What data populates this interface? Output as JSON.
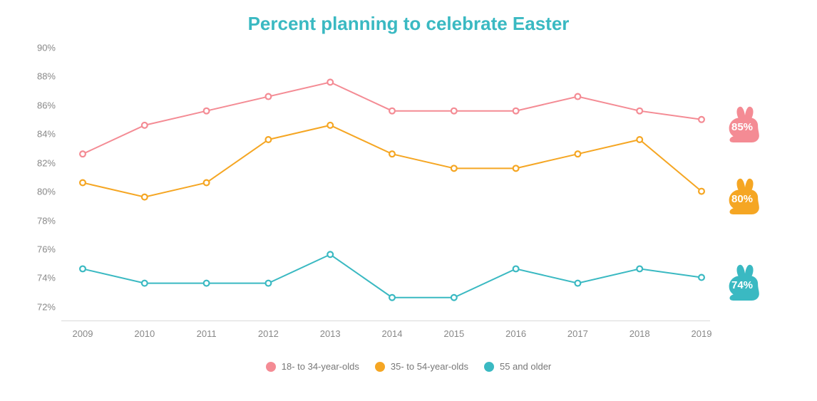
{
  "chart": {
    "type": "line",
    "title": "Percent planning to celebrate Easter",
    "title_color": "#3ab9c2",
    "title_fontsize": 26,
    "background_color": "#ffffff",
    "axis_label_color": "#888888",
    "axis_label_fontsize": 13,
    "border_color": "#d9d9d9",
    "x": {
      "labels": [
        "2009",
        "2010",
        "2011",
        "2012",
        "2013",
        "2014",
        "2015",
        "2016",
        "2017",
        "2018",
        "2019"
      ]
    },
    "y": {
      "min": 71,
      "max": 90,
      "ticks": [
        72,
        74,
        76,
        78,
        80,
        82,
        84,
        86,
        88,
        90
      ],
      "tick_format_suffix": "%"
    },
    "line_width": 2,
    "marker_radius": 5,
    "marker_style": "hollow_ring",
    "series": [
      {
        "id": "age_18_34",
        "label": "18- to 34-year-olds",
        "color": "#f48b94",
        "values": [
          82.6,
          84.6,
          85.6,
          86.6,
          87.6,
          85.6,
          85.6,
          85.6,
          86.6,
          85.6,
          85.0
        ],
        "end_label": "85%"
      },
      {
        "id": "age_35_54",
        "label": "35- to 54-year-olds",
        "color": "#f5a623",
        "values": [
          80.6,
          79.6,
          80.6,
          83.6,
          84.6,
          82.6,
          81.6,
          81.6,
          82.6,
          83.6,
          80.0
        ],
        "end_label": "80%"
      },
      {
        "id": "age_55_plus",
        "label": "55 and older",
        "color": "#3ab9c2",
        "values": [
          74.6,
          73.6,
          73.6,
          73.6,
          75.6,
          72.6,
          72.6,
          74.6,
          73.6,
          74.6,
          74.0
        ],
        "end_label": "74%"
      }
    ],
    "legend": {
      "position": "bottom_center",
      "swatch_shape": "circle",
      "font_color": "#777777",
      "font_size": 13
    },
    "end_icon": "bunny",
    "bunny_label_color": "#ffffff",
    "bunny_label_fontsize": 15
  }
}
